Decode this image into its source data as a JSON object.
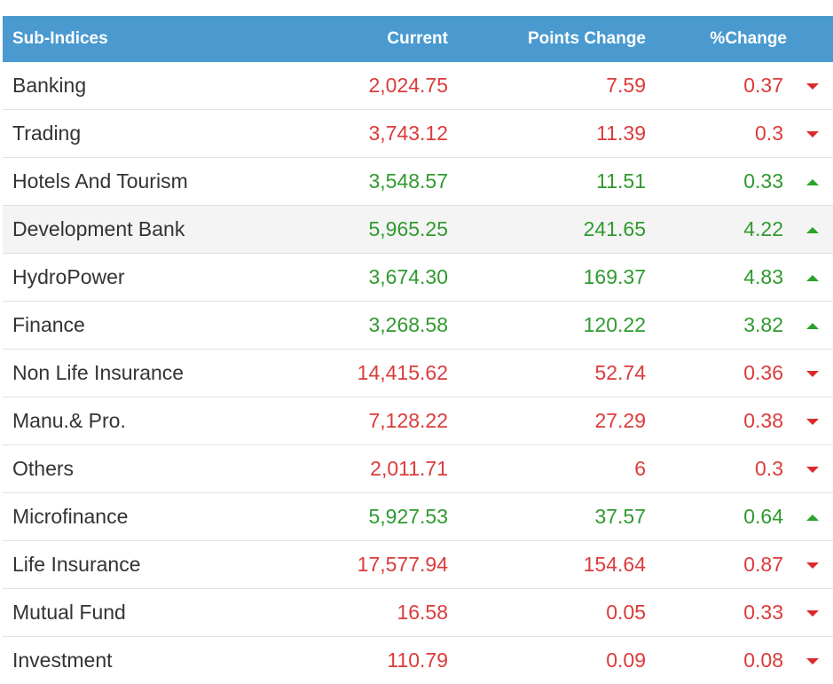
{
  "table": {
    "headers": {
      "name": "Sub-Indices",
      "current": "Current",
      "points_change": "Points Change",
      "pct_change": "%Change"
    },
    "colors": {
      "header_bg": "#4a9ad0",
      "up": "#2f9a2f",
      "down": "#dc3b3b"
    },
    "rows": [
      {
        "name": "Banking",
        "current": "2,024.75",
        "points": "7.59",
        "pct": "0.37",
        "direction": "down",
        "arrow_icon": "caret-down-icon"
      },
      {
        "name": "Trading",
        "current": "3,743.12",
        "points": "11.39",
        "pct": "0.3",
        "direction": "down",
        "arrow_icon": "caret-down-icon"
      },
      {
        "name": "Hotels And Tourism",
        "current": "3,548.57",
        "points": "11.51",
        "pct": "0.33",
        "direction": "up",
        "arrow_icon": "caret-up-icon"
      },
      {
        "name": "Development Bank",
        "current": "5,965.25",
        "points": "241.65",
        "pct": "4.22",
        "direction": "up",
        "arrow_icon": "caret-up-icon"
      },
      {
        "name": "HydroPower",
        "current": "3,674.30",
        "points": "169.37",
        "pct": "4.83",
        "direction": "up",
        "arrow_icon": "caret-up-icon"
      },
      {
        "name": "Finance",
        "current": "3,268.58",
        "points": "120.22",
        "pct": "3.82",
        "direction": "up",
        "arrow_icon": "caret-up-icon"
      },
      {
        "name": "Non Life Insurance",
        "current": "14,415.62",
        "points": "52.74",
        "pct": "0.36",
        "direction": "down",
        "arrow_icon": "caret-down-icon"
      },
      {
        "name": "Manu.& Pro.",
        "current": "7,128.22",
        "points": "27.29",
        "pct": "0.38",
        "direction": "down",
        "arrow_icon": "caret-down-icon"
      },
      {
        "name": "Others",
        "current": "2,011.71",
        "points": "6",
        "pct": "0.3",
        "direction": "down",
        "arrow_icon": "caret-down-icon"
      },
      {
        "name": "Microfinance",
        "current": "5,927.53",
        "points": "37.57",
        "pct": "0.64",
        "direction": "up",
        "arrow_icon": "caret-up-icon"
      },
      {
        "name": "Life Insurance",
        "current": "17,577.94",
        "points": "154.64",
        "pct": "0.87",
        "direction": "down",
        "arrow_icon": "caret-down-icon"
      },
      {
        "name": "Mutual Fund",
        "current": "16.58",
        "points": "0.05",
        "pct": "0.33",
        "direction": "down",
        "arrow_icon": "caret-down-icon"
      },
      {
        "name": "Investment",
        "current": "110.79",
        "points": "0.09",
        "pct": "0.08",
        "direction": "down",
        "arrow_icon": "caret-down-icon"
      }
    ]
  }
}
